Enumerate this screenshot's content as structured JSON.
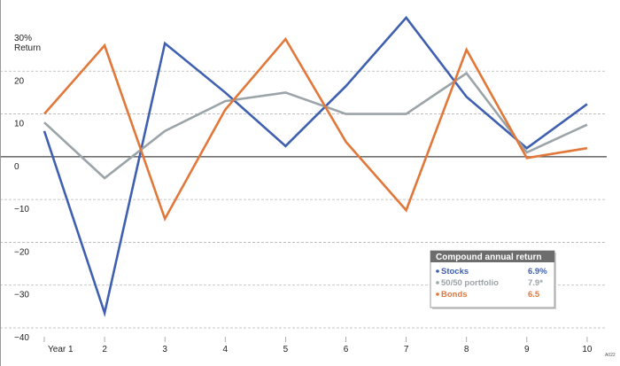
{
  "chart_data": {
    "type": "line",
    "title": "",
    "xlabel": "",
    "ylabel": "Return",
    "y_unit_label": "30%",
    "ylim": [
      -40,
      30
    ],
    "y_ticks": [
      30,
      20,
      10,
      0,
      -10,
      -20,
      -30,
      -40
    ],
    "y_tick_labels": [
      "30%",
      "20",
      "10",
      "0",
      "−10",
      "−20",
      "−30",
      "−40"
    ],
    "categories": [
      "Year 1",
      "2",
      "3",
      "4",
      "5",
      "6",
      "7",
      "8",
      "9",
      "10"
    ],
    "grid": "horizontal-dashed",
    "series": [
      {
        "name": "Stocks",
        "color": "#3f5fb0",
        "values": [
          6,
          -36.5,
          26.5,
          15,
          2.5,
          16.5,
          32.5,
          14,
          2,
          12.3
        ]
      },
      {
        "name": "50/50 portfolio",
        "color": "#9ba4a8",
        "values": [
          8,
          -5,
          6,
          13,
          15,
          10,
          10,
          19.5,
          1,
          7.5
        ]
      },
      {
        "name": "Bonds",
        "color": "#e2773a",
        "values": [
          10,
          26,
          -14.5,
          11,
          27.5,
          3.5,
          -12.5,
          25,
          -0.3,
          2
        ]
      }
    ],
    "legend": {
      "title": "Compound annual return",
      "position": "bottom-right",
      "entries": [
        {
          "name": "Stocks",
          "value": "6.9%"
        },
        {
          "name": "50/50 portfolio",
          "value": "7.9*"
        },
        {
          "name": "Bonds",
          "value": "6.5"
        }
      ]
    },
    "source_mark": "A022"
  }
}
